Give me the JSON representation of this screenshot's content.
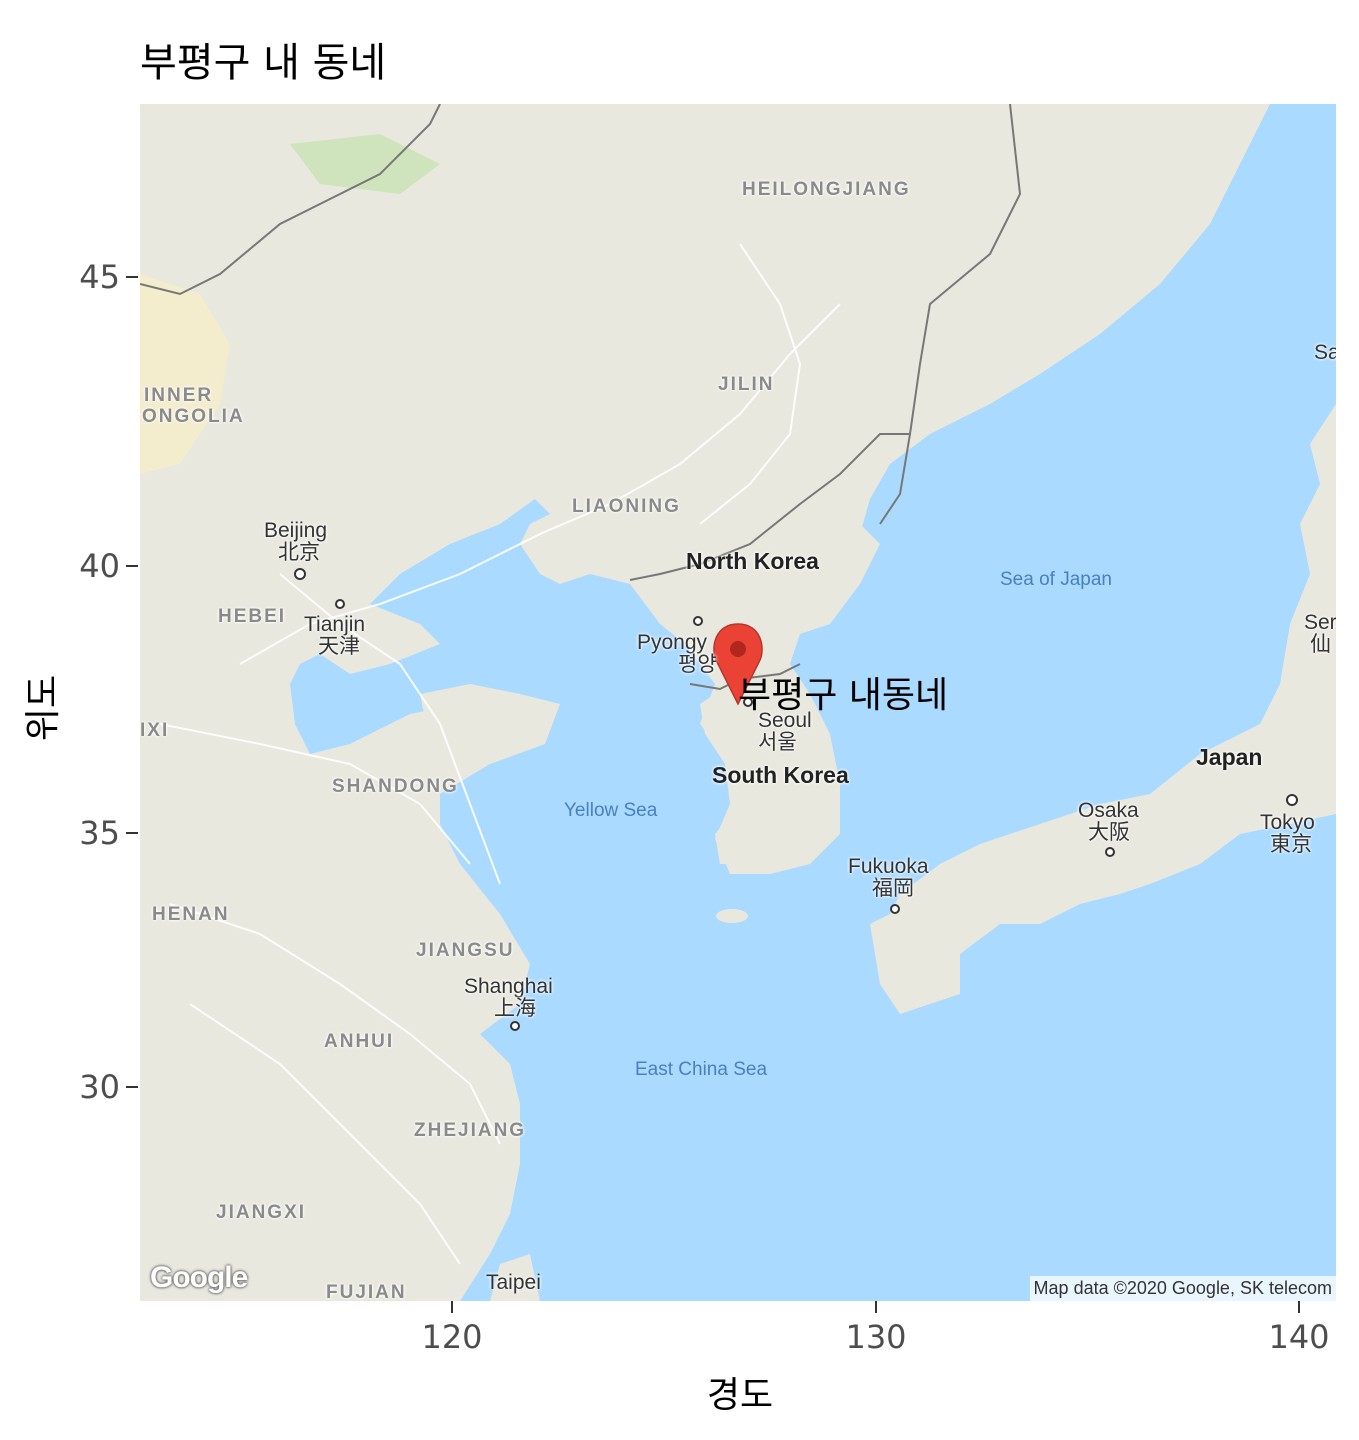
{
  "title": "부평구 내 동네",
  "axes": {
    "x_label": "경도",
    "y_label": "위도",
    "x_ticks": [
      "120",
      "130",
      "140"
    ],
    "y_ticks": [
      "45",
      "40",
      "35",
      "30"
    ]
  },
  "map": {
    "provider_logo": "Google",
    "attribution": "Map data ©2020 Google, SK telecom",
    "colors": {
      "sea": "#aadaff",
      "land": "#e8e8df",
      "border": "#777777",
      "marker": "#ea4335"
    },
    "labels": {
      "heilongjiang": "HEILONGJIANG",
      "jilin": "JILIN",
      "liaoning": "LIAONING",
      "inner_mongolia_1": "INNER",
      "inner_mongolia_2": "ONGOLIA",
      "hebei": "HEBEI",
      "shanxi": "IXI",
      "shandong": "SHANDONG",
      "henan": "HENAN",
      "jiangsu": "JIANGSU",
      "anhui": "ANHUI",
      "zhejiang": "ZHEJIANG",
      "jiangxi": "JIANGXI",
      "fujian": "FUJIAN",
      "north_korea": "North Korea",
      "south_korea": "South Korea",
      "japan": "Japan",
      "beijing_en": "Beijing",
      "beijing_zh": "北京",
      "tianjin_en": "Tianjin",
      "tianjin_zh": "天津",
      "pyongyang_en": "Pyongy",
      "pyongyang_ko": "평양",
      "seoul_en": "Seoul",
      "seoul_ko": "서울",
      "shanghai_en": "Shanghai",
      "shanghai_zh": "上海",
      "osaka_en": "Osaka",
      "osaka_ja": "大阪",
      "tokyo_en": "Tokyo",
      "tokyo_ja": "東京",
      "fukuoka_en": "Fukuoka",
      "fukuoka_ja": "福岡",
      "sendai_en": "Ser",
      "sendai_ja": "仙",
      "sapporo_en": "Sa",
      "taipei_en": "Taipei",
      "sea_of_japan": "Sea of Japan",
      "yellow_sea": "Yellow Sea",
      "east_china_sea": "East China Sea"
    },
    "marker": {
      "icon": "map-pin-icon",
      "label": "부평구 내동네"
    }
  }
}
